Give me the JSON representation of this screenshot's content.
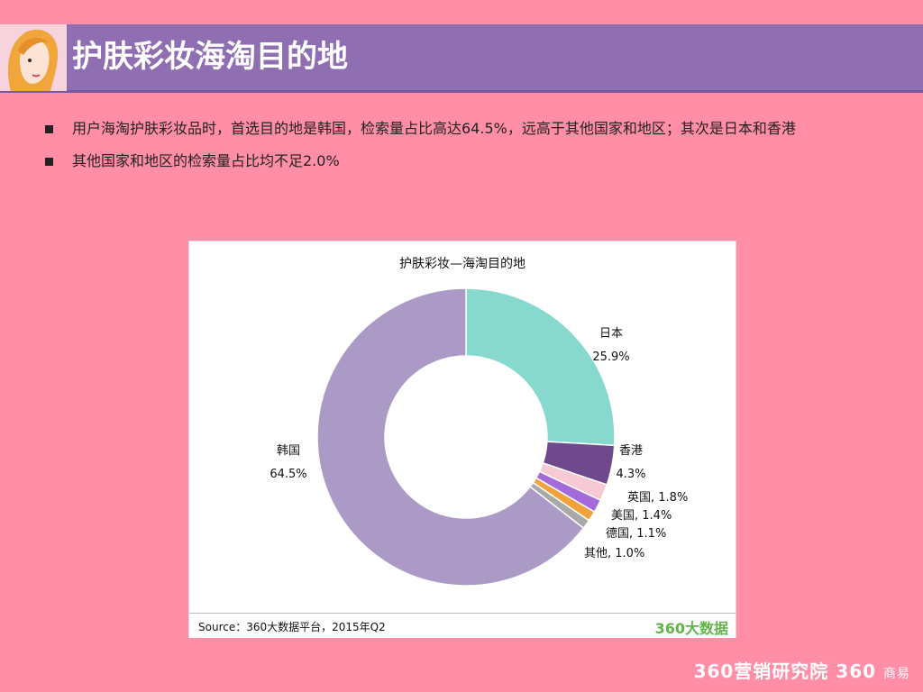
{
  "header": {
    "title": "护肤彩妆海淘目的地"
  },
  "bullets": [
    "用户海淘护肤彩妆品时，首选目的地是韩国，检索量占比高达64.5%，远高于其他国家和地区；其次是日本和香港",
    "其他国家和地区的检索量占比均不足2.0%"
  ],
  "chart_data": {
    "type": "pie",
    "title": "护肤彩妆—海淘目的地",
    "donut": true,
    "slices": [
      {
        "label": "日本",
        "value": 25.9,
        "display": "25.9%",
        "color": "#86d9cc"
      },
      {
        "label": "香港",
        "value": 4.3,
        "display": "4.3%",
        "color": "#6e4a8c"
      },
      {
        "label": "英国",
        "value": 1.8,
        "display": "1.8%",
        "color": "#f7c9d2"
      },
      {
        "label": "美国",
        "value": 1.4,
        "display": "1.4%",
        "color": "#a56ad9"
      },
      {
        "label": "德国",
        "value": 1.1,
        "display": "1.1%",
        "color": "#f1a23a"
      },
      {
        "label": "其他",
        "value": 1.0,
        "display": "1.0%",
        "color": "#a9a9a9"
      },
      {
        "label": "韩国",
        "value": 64.5,
        "display": "64.5%",
        "color": "#ab9ac6"
      }
    ]
  },
  "source": "Source：360大数据平台，2015年Q2",
  "source_logo": "360大数据",
  "brand": {
    "main": "360营销研究院 360",
    "sub": "商易"
  }
}
